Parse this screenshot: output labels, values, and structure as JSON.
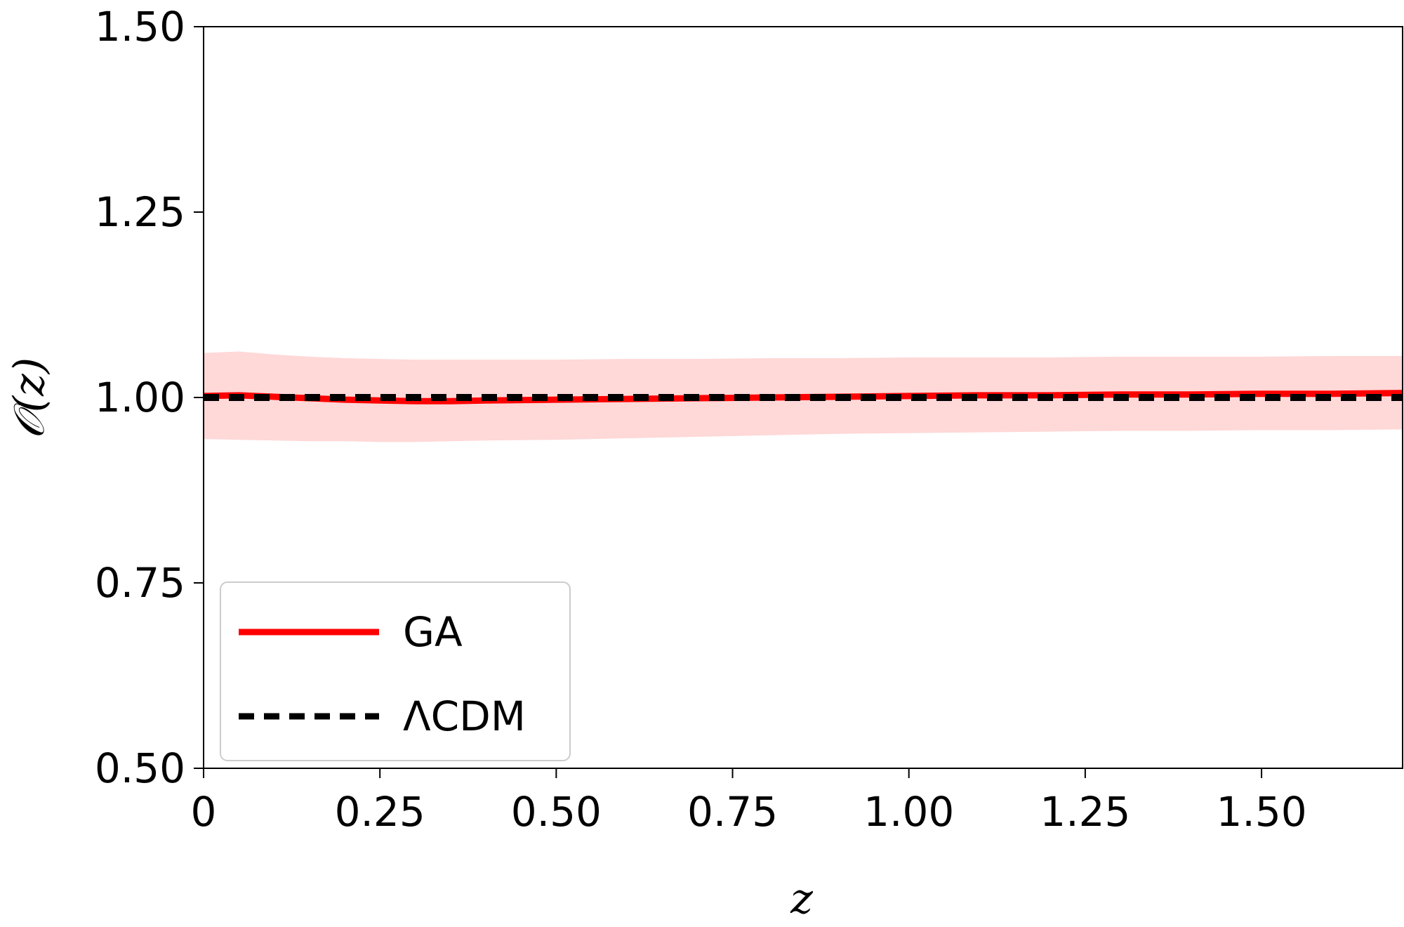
{
  "chart_data": {
    "type": "line",
    "title": "",
    "xlabel": "z",
    "ylabel": "𝒪(z)",
    "xlim": [
      0,
      1.7
    ],
    "ylim": [
      0.5,
      1.5
    ],
    "x_ticks": [
      0,
      0.25,
      0.5,
      0.75,
      1.0,
      1.25,
      1.5
    ],
    "x_tick_labels": [
      "0",
      "0.25",
      "0.50",
      "0.75",
      "1.00",
      "1.25",
      "1.50"
    ],
    "y_ticks": [
      0.5,
      0.75,
      1.0,
      1.25,
      1.5
    ],
    "y_tick_labels": [
      "0.50",
      "0.75",
      "1.00",
      "1.25",
      "1.50"
    ],
    "grid": false,
    "legend_position": "bottom-left",
    "series": [
      {
        "name": "GA",
        "style": "solid",
        "color": "#ff0000",
        "x": [
          0,
          0.05,
          0.1,
          0.15,
          0.2,
          0.25,
          0.3,
          0.35,
          0.4,
          0.5,
          0.6,
          0.7,
          0.8,
          0.9,
          1.0,
          1.1,
          1.2,
          1.3,
          1.4,
          1.5,
          1.6,
          1.7
        ],
        "values": [
          1.002,
          1.003,
          1.001,
          0.999,
          0.997,
          0.996,
          0.995,
          0.995,
          0.996,
          0.997,
          0.998,
          0.999,
          1.0,
          1.001,
          1.002,
          1.003,
          1.003,
          1.004,
          1.004,
          1.005,
          1.005,
          1.006
        ],
        "band_color": "#ffd8d8",
        "band_upper": [
          1.06,
          1.062,
          1.058,
          1.055,
          1.053,
          1.052,
          1.051,
          1.051,
          1.051,
          1.051,
          1.052,
          1.052,
          1.053,
          1.053,
          1.054,
          1.054,
          1.054,
          1.055,
          1.055,
          1.055,
          1.056,
          1.056
        ],
        "band_lower": [
          0.944,
          0.943,
          0.942,
          0.941,
          0.941,
          0.94,
          0.94,
          0.941,
          0.942,
          0.943,
          0.945,
          0.947,
          0.949,
          0.951,
          0.952,
          0.953,
          0.954,
          0.955,
          0.955,
          0.956,
          0.956,
          0.957
        ]
      },
      {
        "name": "ΛCDM",
        "style": "dashed",
        "color": "#000000",
        "x": [
          0,
          1.7
        ],
        "values": [
          1.0,
          1.0
        ]
      }
    ]
  }
}
